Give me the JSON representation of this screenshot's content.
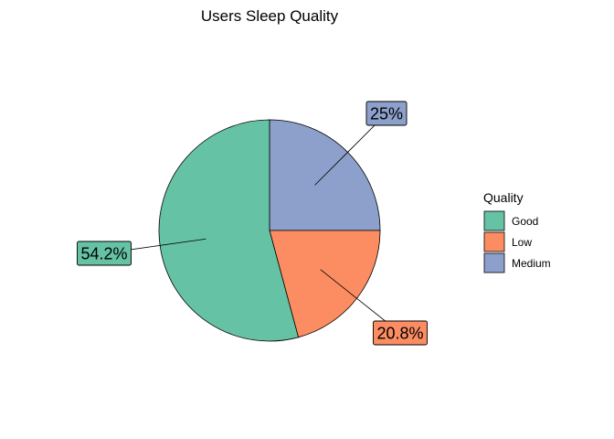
{
  "chart_data": {
    "type": "pie",
    "title": "Users Sleep Quality",
    "slices": [
      {
        "category": "Good",
        "value": 54.2,
        "label": "54.2%",
        "color": "#66C2A5"
      },
      {
        "category": "Low",
        "value": 20.8,
        "label": "20.8%",
        "color": "#FC8D62"
      },
      {
        "category": "Medium",
        "value": 25.0,
        "label": "25%",
        "color": "#8DA0CB"
      }
    ],
    "legend": {
      "title": "Quality",
      "placement": "right",
      "items": [
        "Good",
        "Low",
        "Medium"
      ]
    }
  }
}
